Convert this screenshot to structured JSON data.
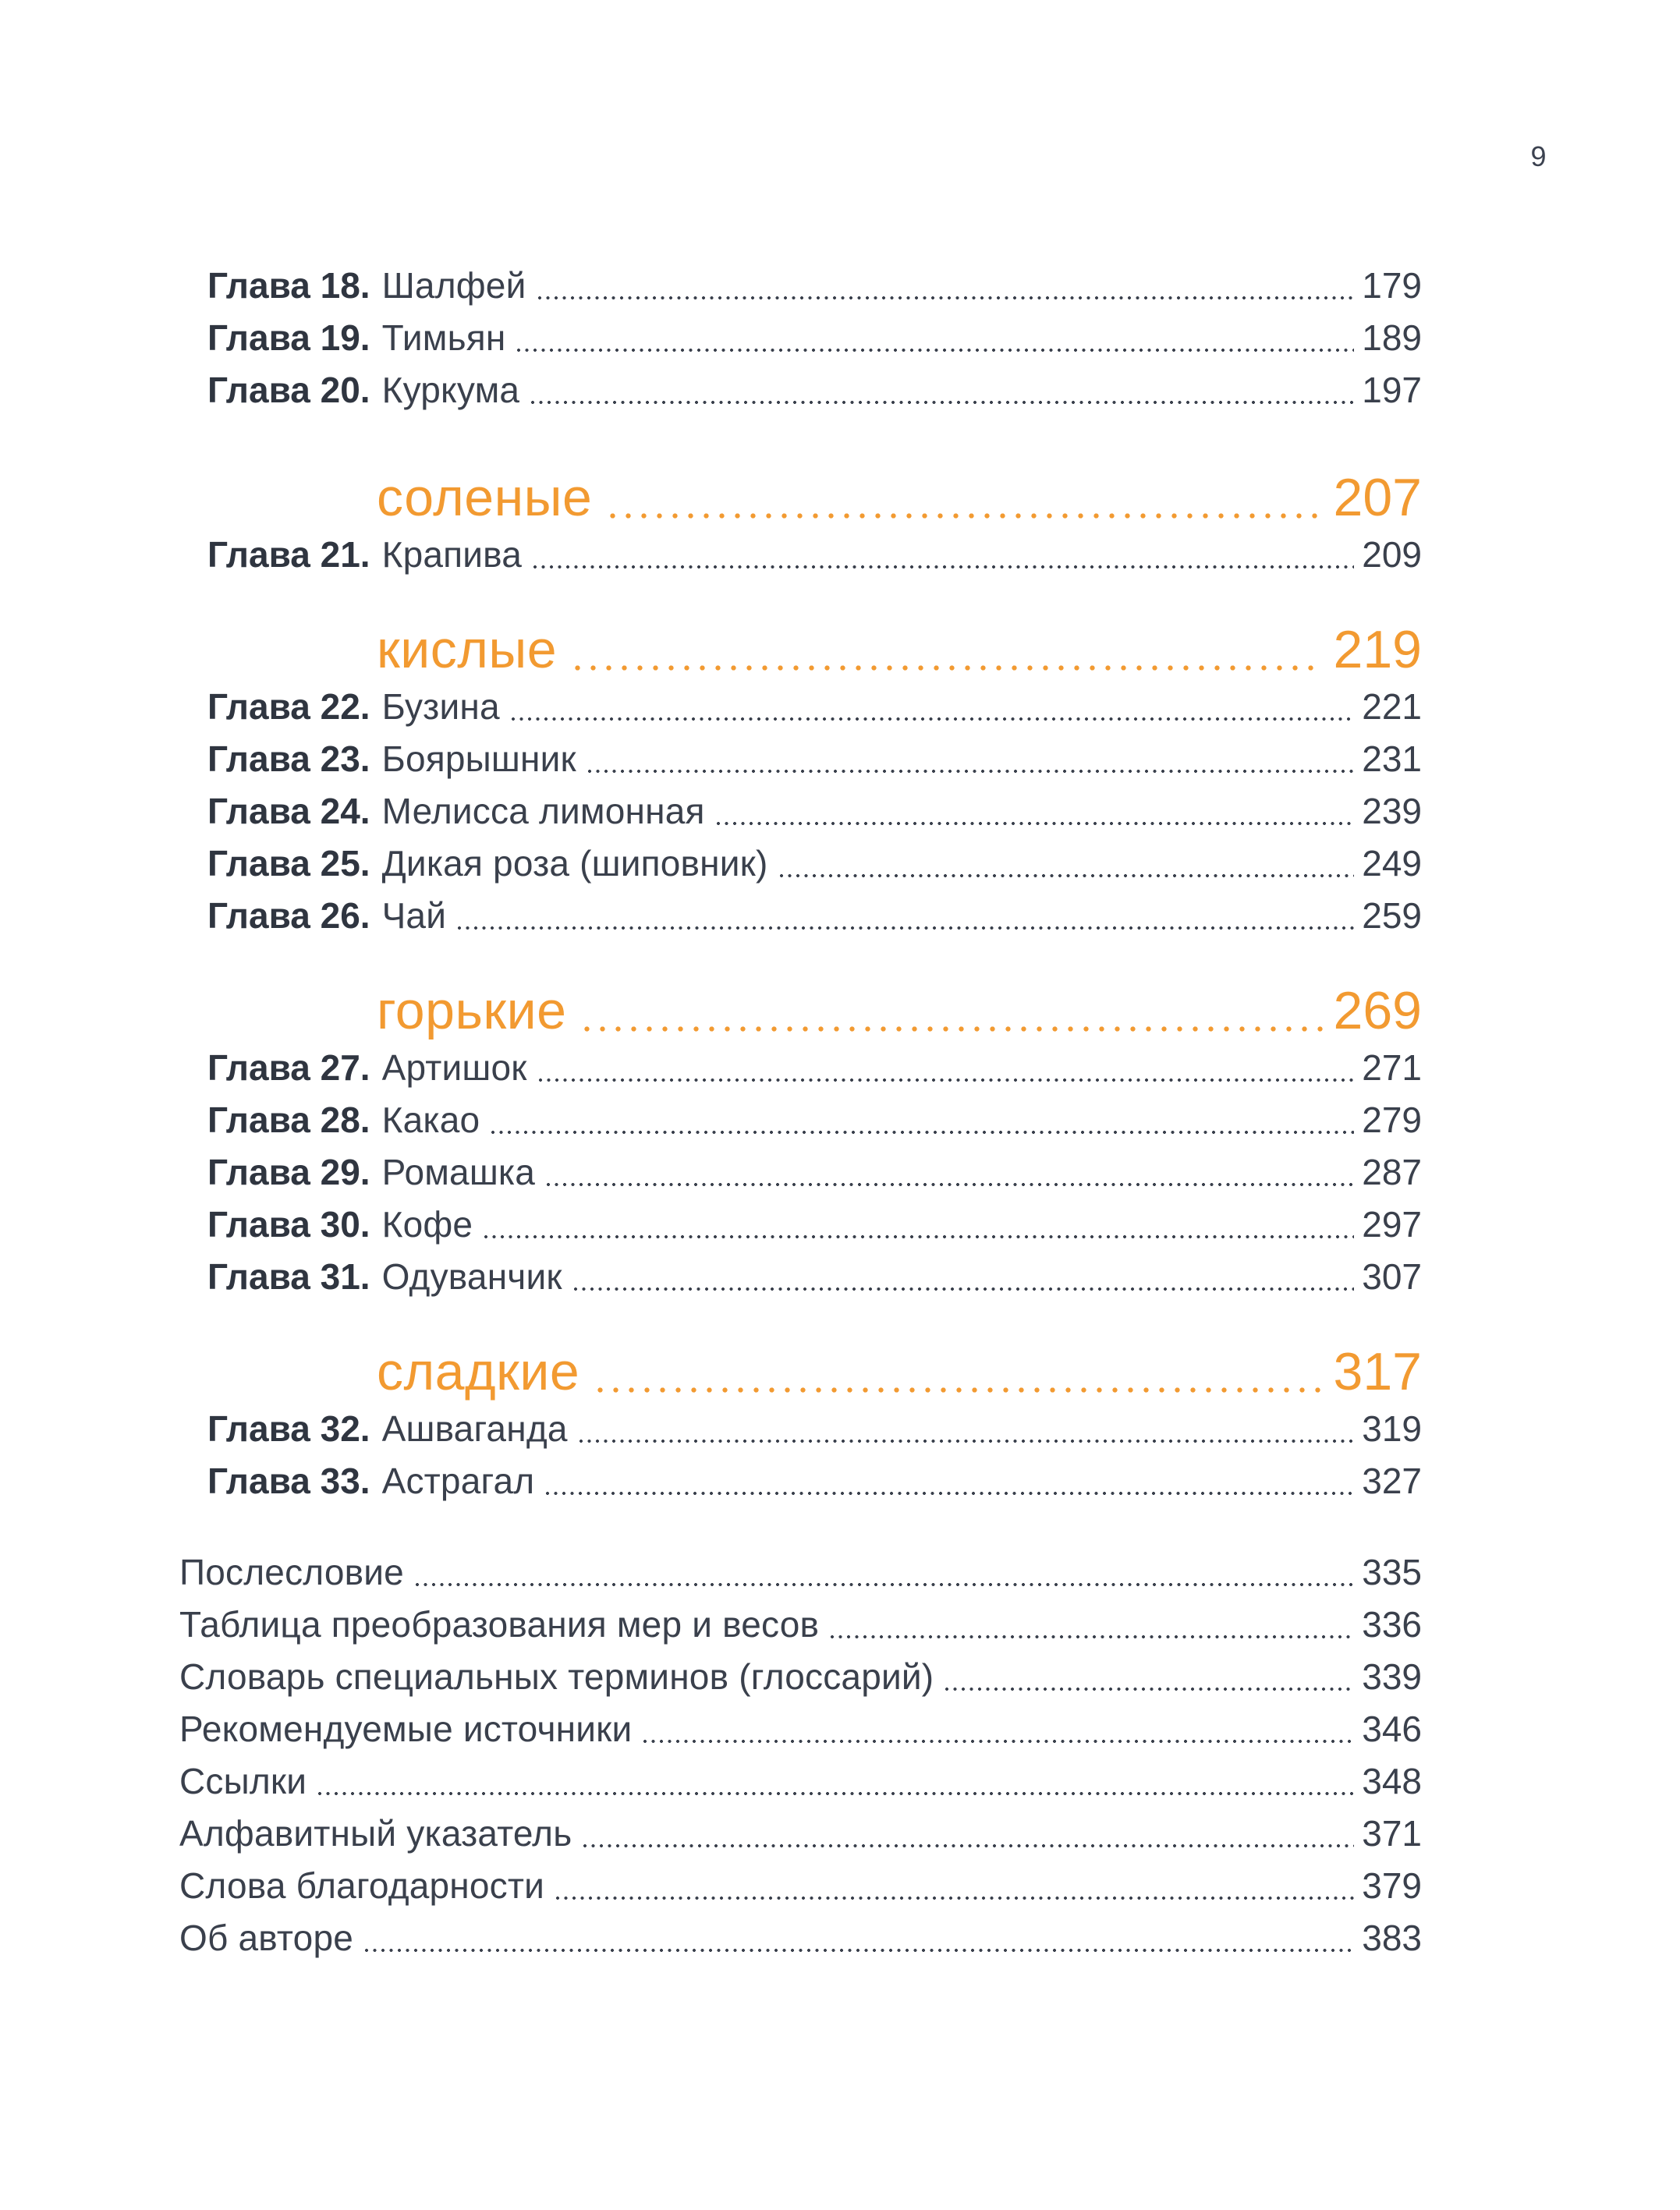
{
  "folio": "9",
  "colors": {
    "accent_orange": "#f29a31",
    "text_dark": "#3a404c",
    "label_bold": "#2f3540"
  },
  "toc": {
    "blocks": [
      {
        "kind": "chapters",
        "rows": [
          {
            "label": "Глава 18.",
            "title": "Шалфей",
            "page": "179"
          },
          {
            "label": "Глава 19.",
            "title": "Тимьян",
            "page": "189"
          },
          {
            "label": "Глава 20.",
            "title": "Куркума",
            "page": "197"
          }
        ]
      },
      {
        "kind": "section",
        "title": "соленые",
        "page": "207"
      },
      {
        "kind": "chapters",
        "rows": [
          {
            "label": "Глава 21.",
            "title": "Крапива",
            "page": "209"
          }
        ]
      },
      {
        "kind": "section",
        "title": "кислые",
        "page": "219"
      },
      {
        "kind": "chapters",
        "rows": [
          {
            "label": "Глава 22.",
            "title": "Бузина",
            "page": "221"
          },
          {
            "label": "Глава 23.",
            "title": "Боярышник",
            "page": "231"
          },
          {
            "label": "Глава 24.",
            "title": "Мелисса лимонная",
            "page": "239"
          },
          {
            "label": "Глава 25.",
            "title": "Дикая роза (шиповник)",
            "page": "249"
          },
          {
            "label": "Глава 26.",
            "title": "Чай",
            "page": "259"
          }
        ]
      },
      {
        "kind": "section",
        "title": "горькие",
        "page": "269"
      },
      {
        "kind": "chapters",
        "rows": [
          {
            "label": "Глава 27.",
            "title": "Артишок",
            "page": "271"
          },
          {
            "label": "Глава 28.",
            "title": "Какао",
            "page": "279"
          },
          {
            "label": "Глава 29.",
            "title": "Ромашка",
            "page": "287"
          },
          {
            "label": "Глава 30.",
            "title": "Кофе",
            "page": "297"
          },
          {
            "label": "Глава 31.",
            "title": "Одуванчик",
            "page": "307"
          }
        ]
      },
      {
        "kind": "section",
        "title": "сладкие",
        "page": "317"
      },
      {
        "kind": "chapters",
        "rows": [
          {
            "label": "Глава 32.",
            "title": "Ашваганда",
            "page": "319"
          },
          {
            "label": "Глава 33.",
            "title": "Астрагал",
            "page": "327"
          }
        ]
      },
      {
        "kind": "backmatter",
        "rows": [
          {
            "title": "Послесловие",
            "page": "335"
          },
          {
            "title": "Таблица преобразования мер и весов",
            "page": "336"
          },
          {
            "title": "Словарь специальных терминов (глоссарий)",
            "page": "339"
          },
          {
            "title": "Рекомендуемые источники",
            "page": "346"
          },
          {
            "title": "Ссылки",
            "page": "348"
          },
          {
            "title": "Алфавитный указатель",
            "page": "371"
          },
          {
            "title": "Слова благодарности",
            "page": "379"
          },
          {
            "title": "Об авторе",
            "page": "383"
          }
        ]
      }
    ]
  }
}
